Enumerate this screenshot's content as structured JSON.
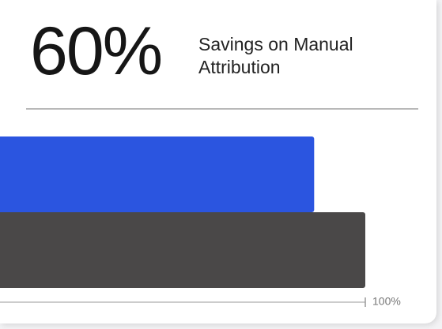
{
  "chart_data": {
    "type": "hbar",
    "title": "60%",
    "subtitle": "Savings on Manual Attribution",
    "categories": [
      null,
      null
    ],
    "values": [
      86,
      100
    ],
    "colors": [
      "#2b55e0",
      "#4a4848"
    ],
    "xlim": [
      0,
      100
    ],
    "xticks": [
      {
        "value": 100,
        "label": "100%"
      }
    ]
  }
}
